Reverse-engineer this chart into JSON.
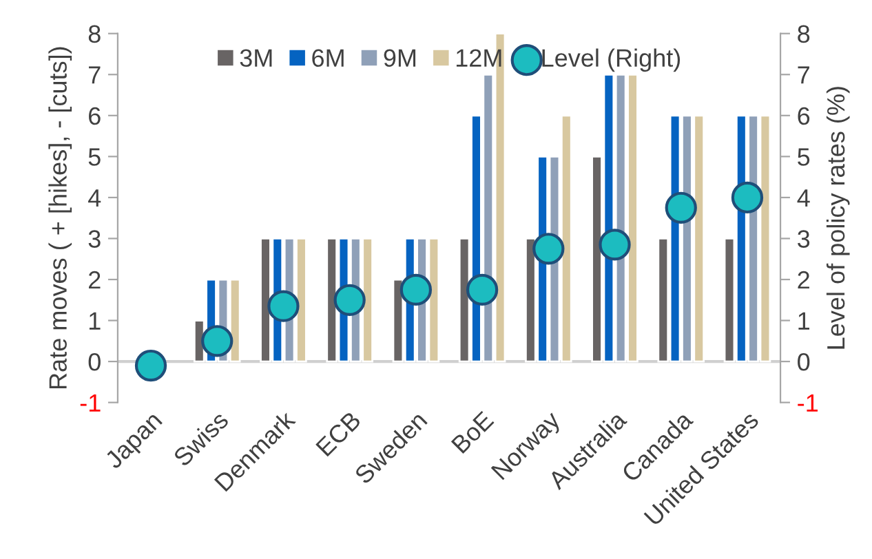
{
  "chart_data": {
    "type": "bar",
    "ylabel": "Rate moves ( + [hikes], - [cuts])",
    "y2label": "Level of policy rates (%)",
    "categories": [
      "Japan",
      "Swiss",
      "Denmark",
      "ECB",
      "Sweden",
      "BoE",
      "Norway",
      "Australia",
      "Canada",
      "United States"
    ],
    "series": [
      {
        "name": "3M",
        "color": "#686464",
        "values": [
          null,
          1,
          3,
          3,
          2,
          3,
          3,
          5,
          3,
          3
        ]
      },
      {
        "name": "6M",
        "color": "#0563c1",
        "values": [
          null,
          2,
          3,
          3,
          3,
          6,
          5,
          7,
          6,
          6
        ]
      },
      {
        "name": "9M",
        "color": "#8fa0b8",
        "values": [
          null,
          2,
          3,
          3,
          3,
          7,
          5,
          7,
          6,
          6
        ]
      },
      {
        "name": "12M",
        "color": "#d8c8a0",
        "values": [
          null,
          2,
          3,
          3,
          3,
          8,
          6,
          7,
          6,
          6
        ]
      },
      {
        "name": "Level (Right)",
        "type": "scatter",
        "axis": "y2",
        "color": "#1cbcc0",
        "values": [
          -0.1,
          0.5,
          1.35,
          1.5,
          1.75,
          1.75,
          2.75,
          2.85,
          3.75,
          4.0
        ]
      }
    ],
    "ylim": [
      -1,
      8
    ],
    "yticks": [
      -1,
      0,
      1,
      2,
      3,
      4,
      5,
      6,
      7,
      8
    ],
    "y2lim": [
      -1,
      8
    ],
    "y2ticks": [
      -1,
      0,
      1,
      2,
      3,
      4,
      5,
      6,
      7,
      8
    ],
    "marker": "circle",
    "legend": "top",
    "grid": false
  }
}
